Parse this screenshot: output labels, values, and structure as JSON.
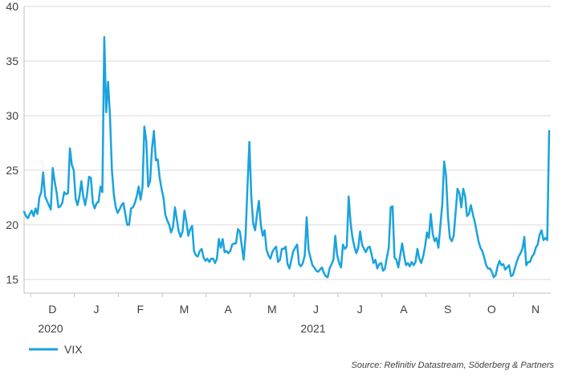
{
  "chart_data": {
    "type": "line",
    "ylim": [
      15,
      40
    ],
    "y_ticks": [
      "15",
      "20",
      "25",
      "30",
      "35",
      "40"
    ],
    "month_labels": [
      "D",
      "J",
      "F",
      "M",
      "A",
      "M",
      "J",
      "J",
      "A",
      "S",
      "O",
      "N"
    ],
    "year_labels": [
      "2020",
      "2021"
    ],
    "grid": true,
    "legend": "bottom-left",
    "series": [
      {
        "name": "VIX",
        "color": "#1aa3dd",
        "values": [
          21.2,
          20.8,
          20.6,
          21.0,
          21.3,
          20.8,
          21.5,
          21.0,
          22.5,
          23.0,
          24.8,
          22.6,
          22.2,
          21.8,
          21.4,
          25.2,
          24.0,
          23.0,
          21.6,
          21.7,
          22.0,
          23.0,
          22.8,
          22.9,
          27.0,
          25.5,
          25.0,
          22.4,
          21.8,
          22.6,
          24.0,
          22.6,
          21.8,
          22.8,
          24.4,
          24.3,
          22.0,
          21.5,
          22.0,
          22.1,
          23.5,
          23.0,
          37.2,
          30.3,
          33.1,
          29.9,
          25.0,
          22.8,
          21.6,
          21.1,
          21.4,
          21.8,
          22.0,
          21.0,
          20.0,
          20.0,
          21.5,
          21.6,
          22.0,
          22.6,
          23.5,
          22.3,
          23.4,
          29.0,
          27.7,
          23.5,
          24.0,
          27.0,
          28.6,
          25.9,
          26.0,
          24.3,
          23.3,
          22.5,
          20.9,
          20.4,
          20.0,
          19.3,
          19.8,
          21.6,
          20.5,
          19.4,
          18.9,
          19.4,
          21.3,
          20.3,
          19.0,
          19.6,
          19.9,
          17.6,
          17.2,
          17.1,
          17.6,
          17.8,
          17.0,
          16.7,
          16.9,
          16.6,
          16.9,
          16.9,
          16.5,
          16.9,
          18.7,
          17.9,
          18.7,
          17.5,
          17.6,
          17.4,
          17.6,
          18.2,
          18.3,
          18.3,
          19.6,
          19.4,
          18.1,
          16.8,
          19.0,
          23.5,
          27.6,
          22.6,
          20.1,
          19.5,
          21.0,
          22.2,
          20.0,
          19.0,
          19.5,
          17.7,
          17.2,
          16.9,
          17.5,
          17.8,
          18.0,
          16.6,
          16.8,
          17.8,
          17.8,
          18.0,
          16.4,
          16.0,
          16.8,
          17.6,
          17.9,
          18.2,
          16.4,
          16.2,
          16.5,
          17.2,
          20.7,
          17.7,
          17.0,
          16.3,
          16.1,
          15.8,
          15.7,
          15.9,
          16.1,
          15.6,
          15.3,
          15.2,
          16.0,
          16.4,
          16.8,
          19.0,
          17.2,
          16.5,
          16.1,
          18.2,
          17.8,
          18.0,
          22.6,
          20.2,
          18.8,
          18.0,
          17.4,
          17.9,
          19.4,
          18.2,
          17.8,
          17.5,
          17.9,
          18.0,
          17.3,
          16.5,
          16.8,
          16.0,
          16.4,
          16.5,
          15.8,
          16.0,
          17.0,
          17.9,
          21.6,
          21.7,
          17.0,
          16.8,
          16.1,
          17.2,
          18.3,
          17.2,
          16.3,
          16.5,
          16.2,
          16.6,
          16.3,
          16.6,
          17.8,
          16.9,
          16.5,
          17.1,
          18.0,
          19.3,
          18.8,
          21.0,
          19.2,
          18.5,
          18.8,
          17.9,
          19.9,
          21.8,
          25.8,
          24.5,
          20.8,
          18.8,
          18.5,
          19.0,
          21.1,
          23.3,
          22.9,
          21.6,
          23.3,
          22.6,
          20.8,
          21.0,
          21.8,
          21.0,
          20.3,
          19.4,
          18.5,
          17.9,
          17.6,
          17.0,
          16.3,
          16.0,
          16.0,
          15.7,
          15.2,
          15.4,
          16.2,
          16.7,
          16.3,
          16.4,
          15.9,
          16.1,
          16.3,
          15.3,
          15.4,
          16.0,
          16.6,
          17.1,
          17.4,
          17.8,
          18.9,
          16.3,
          16.6,
          16.6,
          17.1,
          17.3,
          17.9,
          18.2,
          19.1,
          19.5,
          18.6,
          18.8,
          18.6,
          28.6
        ]
      }
    ],
    "source": "Source: Refinitiv Datastream, Söderberg & Partners"
  }
}
